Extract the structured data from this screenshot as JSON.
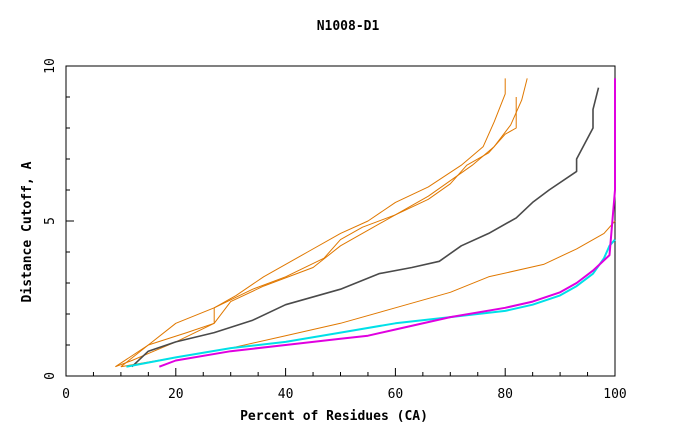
{
  "chart_data": {
    "type": "line",
    "title": "N1008-D1",
    "xlabel": "Percent of Residues (CA)",
    "ylabel": "Distance Cutoff, A",
    "xlim": [
      0,
      100
    ],
    "ylim": [
      0,
      10
    ],
    "xticks": [
      0,
      20,
      40,
      60,
      80,
      100
    ],
    "yticks": [
      0,
      5,
      10
    ],
    "grid": false,
    "series": [
      {
        "name": "orange-1",
        "color": "#e07800",
        "x": [
          9,
          15,
          20,
          27,
          31,
          36,
          44,
          50,
          55,
          60,
          66,
          72,
          76,
          78,
          80,
          80
        ],
        "y": [
          0.3,
          1.0,
          1.7,
          2.2,
          2.6,
          3.2,
          4.0,
          4.6,
          5.0,
          5.6,
          6.1,
          6.8,
          7.4,
          8.2,
          9.1,
          9.6
        ]
      },
      {
        "name": "orange-2",
        "color": "#e07800",
        "x": [
          10,
          15,
          22,
          27,
          30,
          36,
          45,
          50,
          56,
          60,
          66,
          70,
          74,
          78,
          81,
          83,
          84
        ],
        "y": [
          0.3,
          1.0,
          1.4,
          1.7,
          2.4,
          2.9,
          3.5,
          4.2,
          4.8,
          5.2,
          5.8,
          6.3,
          6.8,
          7.4,
          8.1,
          8.9,
          9.6
        ]
      },
      {
        "name": "orange-3",
        "color": "#e07800",
        "x": [
          9,
          12,
          16,
          20,
          27,
          27,
          34,
          40,
          47,
          50,
          54,
          60,
          66,
          70,
          73,
          77,
          80,
          82,
          82
        ],
        "y": [
          0.3,
          0.5,
          0.8,
          1.1,
          1.7,
          2.2,
          2.8,
          3.2,
          3.8,
          4.4,
          4.8,
          5.2,
          5.7,
          6.2,
          6.8,
          7.2,
          7.8,
          8.0,
          9.0
        ]
      },
      {
        "name": "orange-4",
        "color": "#e07800",
        "x": [
          10,
          20,
          30,
          40,
          50,
          60,
          70,
          77,
          87,
          93,
          98,
          100
        ],
        "y": [
          0.3,
          0.6,
          0.9,
          1.3,
          1.7,
          2.2,
          2.7,
          3.2,
          3.6,
          4.1,
          4.6,
          5.0
        ]
      },
      {
        "name": "gray",
        "color": "#4a4a4a",
        "x": [
          12,
          15,
          20,
          27,
          34,
          40,
          50,
          57,
          63,
          68,
          72,
          77,
          82,
          85,
          88,
          93,
          93,
          96,
          96,
          97
        ],
        "y": [
          0.3,
          0.8,
          1.1,
          1.4,
          1.8,
          2.3,
          2.8,
          3.3,
          3.5,
          3.7,
          4.2,
          4.6,
          5.1,
          5.6,
          6.0,
          6.6,
          7.0,
          8.0,
          8.6,
          9.3
        ]
      },
      {
        "name": "cyan",
        "color": "#00e0e8",
        "x": [
          11,
          20,
          30,
          40,
          50,
          60,
          70,
          80,
          85,
          90,
          93,
          96,
          98,
          99,
          100
        ],
        "y": [
          0.3,
          0.6,
          0.9,
          1.1,
          1.4,
          1.7,
          1.9,
          2.1,
          2.3,
          2.6,
          2.9,
          3.3,
          3.8,
          4.2,
          4.4
        ]
      },
      {
        "name": "magenta",
        "color": "#e000e0",
        "x": [
          17,
          20,
          30,
          40,
          50,
          55,
          60,
          70,
          80,
          85,
          90,
          93,
          96,
          99,
          100,
          100
        ],
        "y": [
          0.3,
          0.5,
          0.8,
          1.0,
          1.2,
          1.3,
          1.5,
          1.9,
          2.2,
          2.4,
          2.7,
          3.0,
          3.4,
          3.9,
          6.0,
          9.6
        ]
      }
    ]
  }
}
